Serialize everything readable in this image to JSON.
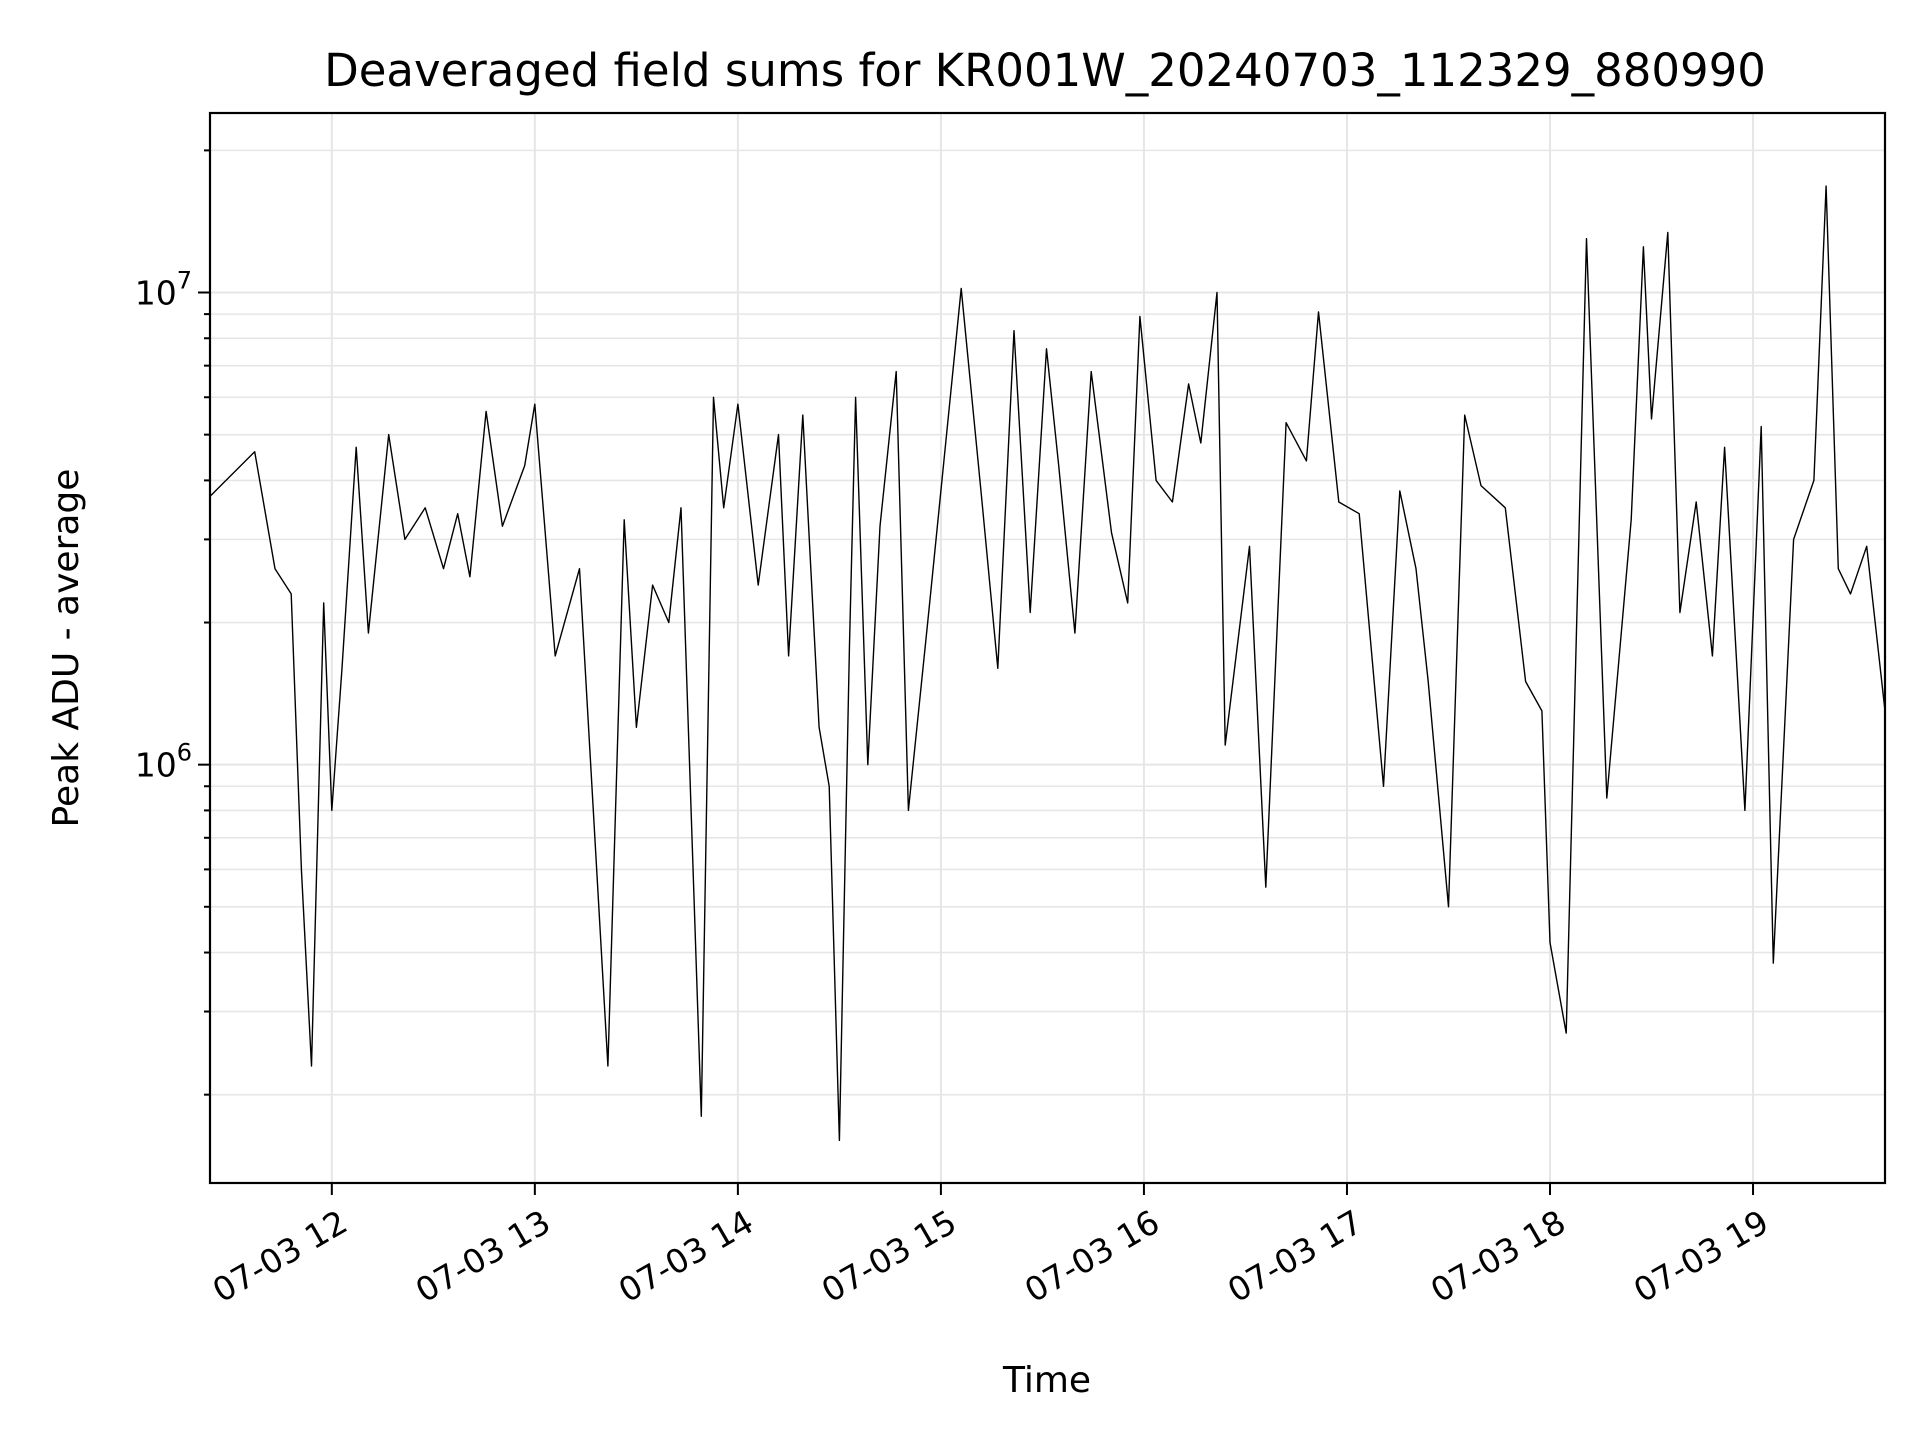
{
  "chart_data": {
    "type": "line",
    "title": "Deaveraged field sums for KR001W_20240703_112329_880990",
    "xlabel": "Time",
    "ylabel": "Peak ADU - average",
    "yscale": "log",
    "grid": true,
    "line_color": "#000000",
    "grid_color": "#e6e6e6",
    "xlim_hours": [
      11.4,
      19.65
    ],
    "ylim": [
      130000,
      24000000
    ],
    "x_ticks": [
      {
        "hour": 12,
        "label": "07-03 12"
      },
      {
        "hour": 13,
        "label": "07-03 13"
      },
      {
        "hour": 14,
        "label": "07-03 14"
      },
      {
        "hour": 15,
        "label": "07-03 15"
      },
      {
        "hour": 16,
        "label": "07-03 16"
      },
      {
        "hour": 17,
        "label": "07-03 17"
      },
      {
        "hour": 18,
        "label": "07-03 18"
      },
      {
        "hour": 19,
        "label": "07-03 19"
      }
    ],
    "y_ticks": [
      {
        "value": 1000000,
        "base": "10",
        "exp": "6"
      },
      {
        "value": 10000000,
        "base": "10",
        "exp": "7"
      }
    ],
    "series": [
      {
        "x_hours": [
          11.4,
          11.62,
          11.72,
          11.8,
          11.85,
          11.9,
          11.96,
          12.0,
          12.05,
          12.12,
          12.18,
          12.28,
          12.36,
          12.46,
          12.55,
          12.62,
          12.68,
          12.76,
          12.84,
          12.95,
          13.0,
          13.1,
          13.22,
          13.36,
          13.44,
          13.5,
          13.58,
          13.66,
          13.72,
          13.82,
          13.88,
          13.93,
          14.0,
          14.1,
          14.2,
          14.25,
          14.32,
          14.4,
          14.45,
          14.5,
          14.55,
          14.58,
          14.64,
          14.7,
          14.78,
          14.84,
          14.94,
          15.1,
          15.2,
          15.28,
          15.36,
          15.44,
          15.52,
          15.58,
          15.66,
          15.74,
          15.84,
          15.92,
          15.98,
          16.06,
          16.14,
          16.22,
          16.28,
          16.36,
          16.4,
          16.52,
          16.6,
          16.7,
          16.8,
          16.86,
          16.96,
          17.06,
          17.18,
          17.26,
          17.34,
          17.4,
          17.5,
          17.58,
          17.66,
          17.78,
          17.88,
          17.96,
          18.0,
          18.08,
          18.18,
          18.28,
          18.4,
          18.46,
          18.5,
          18.58,
          18.64,
          18.72,
          18.8,
          18.86,
          18.96,
          19.04,
          19.1,
          19.2,
          19.3,
          19.36,
          19.42,
          19.48,
          19.56,
          19.65
        ],
        "y": [
          3700000,
          4600000,
          2600000,
          2300000,
          600000,
          230000,
          2200000,
          800000,
          1600000,
          4700000,
          1900000,
          5000000,
          3000000,
          3500000,
          2600000,
          3400000,
          2500000,
          5600000,
          3200000,
          4300000,
          5800000,
          1700000,
          2600000,
          230000,
          3300000,
          1200000,
          2400000,
          2000000,
          3500000,
          180000,
          6000000,
          3500000,
          5800000,
          2400000,
          5000000,
          1700000,
          5500000,
          1200000,
          900000,
          160000,
          1800000,
          6000000,
          1000000,
          3200000,
          6800000,
          800000,
          2100000,
          10200000,
          3700000,
          1600000,
          8300000,
          2100000,
          7600000,
          4300000,
          1900000,
          6800000,
          3100000,
          2200000,
          8900000,
          4000000,
          3600000,
          6400000,
          4800000,
          10000000,
          1100000,
          2900000,
          550000,
          5300000,
          4400000,
          9100000,
          3600000,
          3400000,
          900000,
          3800000,
          2600000,
          1500000,
          500000,
          5500000,
          3900000,
          3500000,
          1500000,
          1300000,
          420000,
          270000,
          13000000,
          850000,
          3300000,
          12500000,
          5400000,
          13400000,
          2100000,
          3600000,
          1700000,
          4700000,
          800000,
          5200000,
          380000,
          3000000,
          4000000,
          16800000,
          2600000,
          2300000,
          2900000,
          1300000
        ]
      }
    ]
  }
}
